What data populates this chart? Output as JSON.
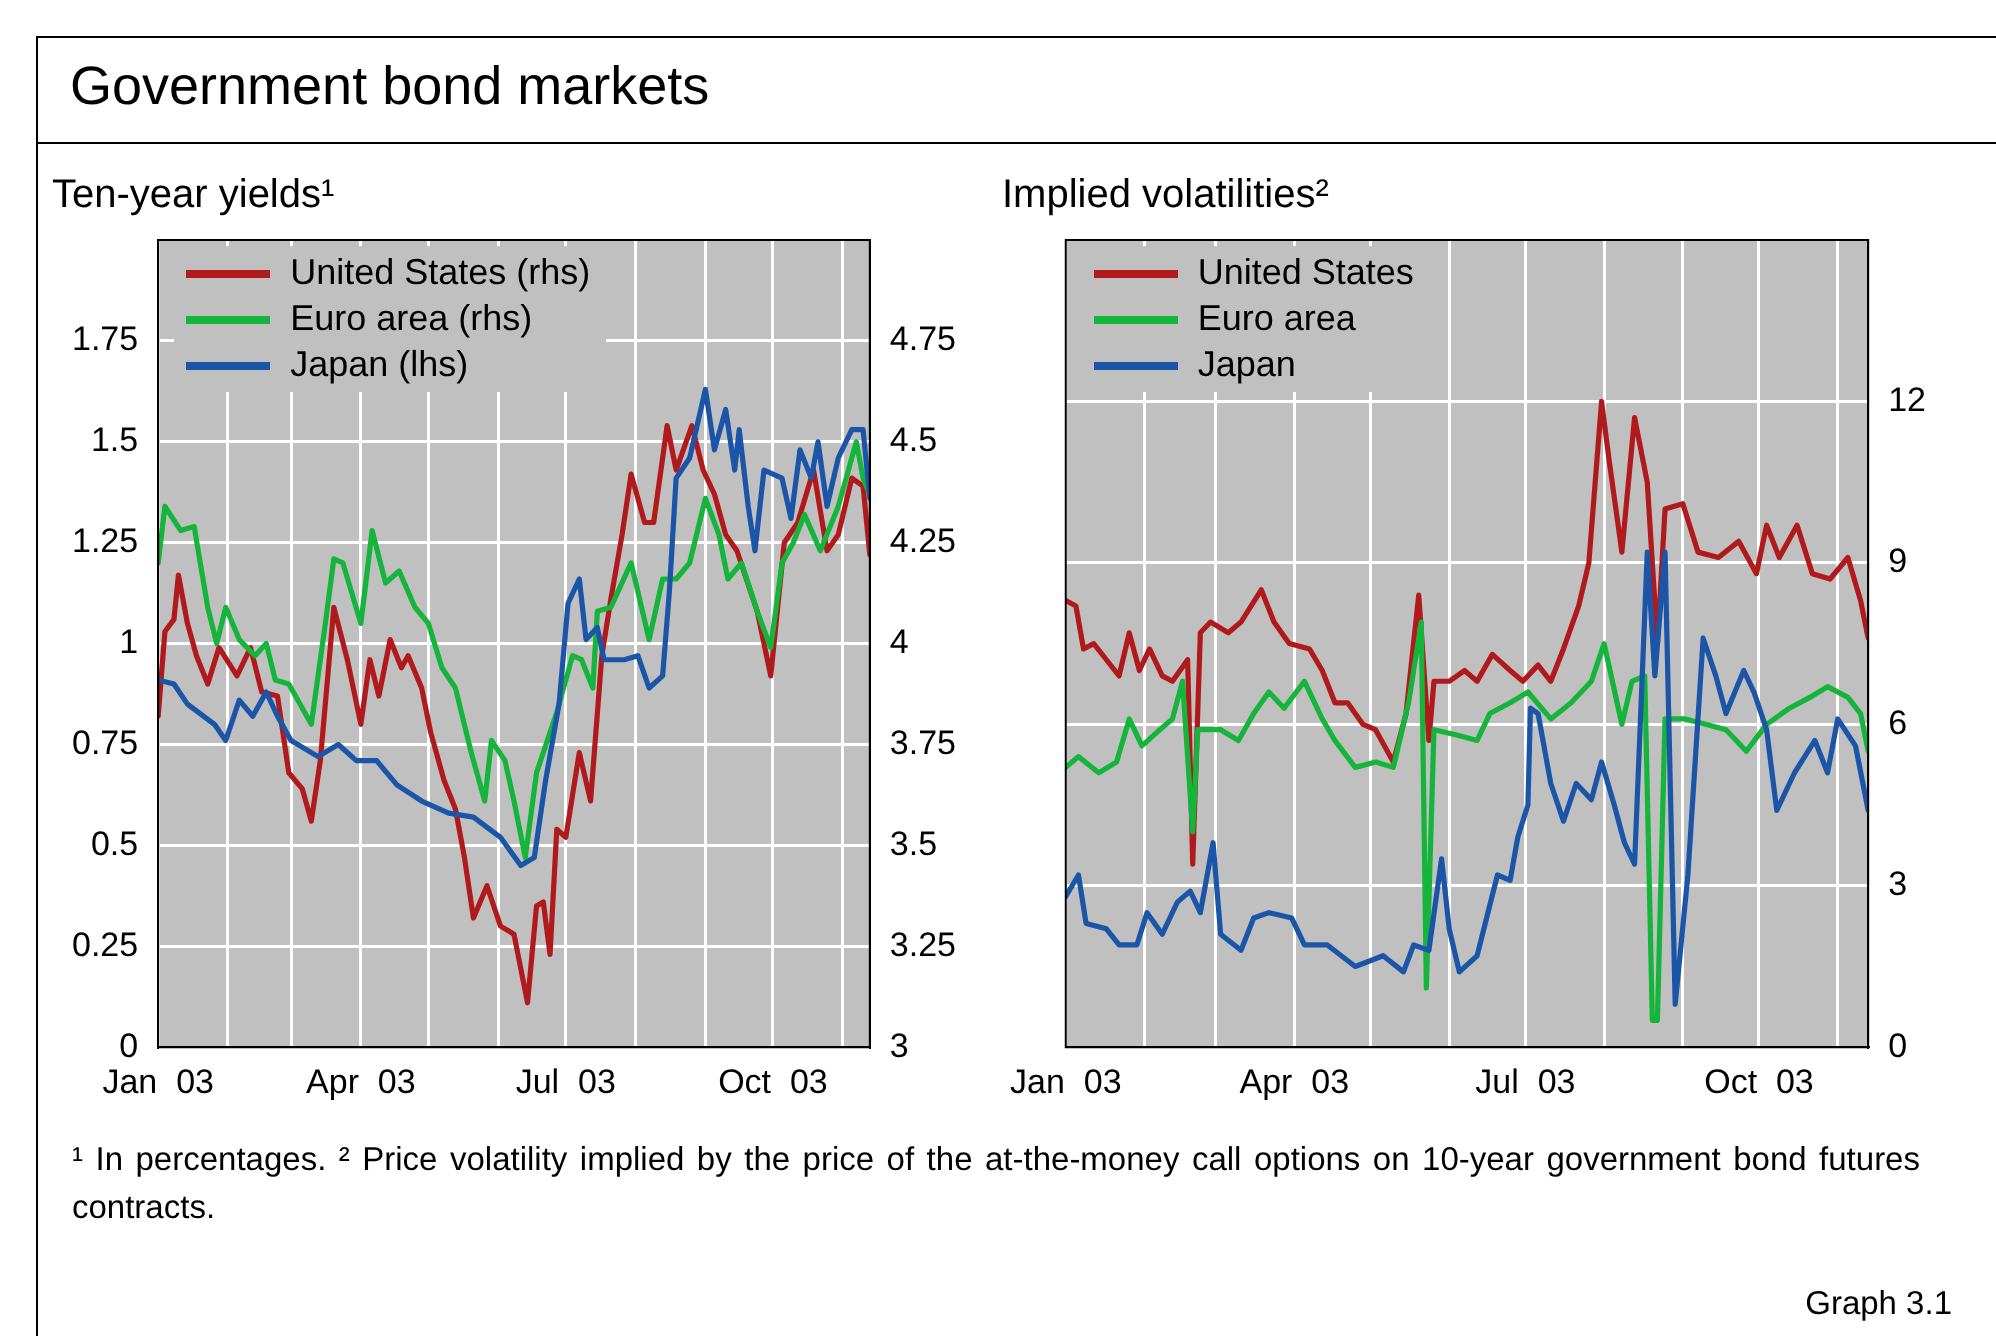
{
  "chart_data": [
    {
      "type": "line",
      "title": "Ten-year yields¹",
      "annotations": [
        "Government bond markets"
      ],
      "xlim": [
        "2003-01-01",
        "2003-11-13"
      ],
      "xticks": [
        {
          "value": "2003-01-01",
          "label": "Jan  03"
        },
        {
          "value": "2003-02-01",
          "label": null
        },
        {
          "value": "2003-03-01",
          "label": null
        },
        {
          "value": "2003-04-01",
          "label": "Apr  03"
        },
        {
          "value": "2003-05-01",
          "label": null
        },
        {
          "value": "2003-06-01",
          "label": null
        },
        {
          "value": "2003-07-01",
          "label": "Jul  03"
        },
        {
          "value": "2003-08-01",
          "label": null
        },
        {
          "value": "2003-09-01",
          "label": null
        },
        {
          "value": "2003-10-01",
          "label": "Oct  03"
        },
        {
          "value": "2003-11-01",
          "label": null
        }
      ],
      "ylim": [
        0,
        2
      ],
      "yticks": [
        0,
        0.25,
        0.5,
        0.75,
        1,
        1.25,
        1.5,
        1.75
      ],
      "y2lim": [
        3,
        5
      ],
      "y2ticks": [
        3,
        3.25,
        3.5,
        3.75,
        4,
        4.25,
        4.5,
        4.75
      ],
      "grid": true,
      "legend": "top left",
      "series": [
        {
          "name": "United States (rhs)",
          "color": "#b11a1c",
          "axis": "y2",
          "x": [
            "2003-01-01",
            "2003-01-04",
            "2003-01-08",
            "2003-01-10",
            "2003-01-14",
            "2003-01-18",
            "2003-01-23",
            "2003-01-28",
            "2003-02-05",
            "2003-02-11",
            "2003-02-16",
            "2003-02-23",
            "2003-02-28",
            "2003-03-06",
            "2003-03-10",
            "2003-03-14",
            "2003-03-20",
            "2003-03-26",
            "2003-04-01",
            "2003-04-05",
            "2003-04-09",
            "2003-04-14",
            "2003-04-19",
            "2003-04-22",
            "2003-04-28",
            "2003-05-02",
            "2003-05-08",
            "2003-05-13",
            "2003-05-17",
            "2003-05-21",
            "2003-05-27",
            "2003-06-02",
            "2003-06-08",
            "2003-06-14",
            "2003-06-18",
            "2003-06-21",
            "2003-06-24",
            "2003-06-27",
            "2003-07-01",
            "2003-07-07",
            "2003-07-12",
            "2003-07-17",
            "2003-07-21",
            "2003-07-26",
            "2003-07-30",
            "2003-08-05",
            "2003-08-09",
            "2003-08-15",
            "2003-08-19",
            "2003-08-26",
            "2003-08-31",
            "2003-09-05",
            "2003-09-10",
            "2003-09-15",
            "2003-09-24",
            "2003-09-30",
            "2003-10-06",
            "2003-10-12",
            "2003-10-19",
            "2003-10-25",
            "2003-10-30",
            "2003-11-05",
            "2003-11-10",
            "2003-11-13"
          ],
          "values": [
            3.82,
            4.03,
            4.06,
            4.17,
            4.05,
            3.97,
            3.9,
            3.99,
            3.92,
            3.99,
            3.88,
            3.87,
            3.68,
            3.64,
            3.56,
            3.71,
            4.09,
            3.96,
            3.8,
            3.96,
            3.87,
            4.01,
            3.94,
            3.97,
            3.89,
            3.78,
            3.66,
            3.59,
            3.47,
            3.32,
            3.4,
            3.3,
            3.28,
            3.11,
            3.35,
            3.36,
            3.23,
            3.54,
            3.52,
            3.73,
            3.61,
            3.97,
            4.11,
            4.27,
            4.42,
            4.3,
            4.3,
            4.54,
            4.43,
            4.54,
            4.43,
            4.37,
            4.27,
            4.23,
            4.08,
            3.92,
            4.25,
            4.3,
            4.43,
            4.23,
            4.27,
            4.41,
            4.39,
            4.22
          ]
        },
        {
          "name": "Euro area (rhs)",
          "color": "#14b53a",
          "axis": "y2",
          "x": [
            "2003-01-01",
            "2003-01-04",
            "2003-01-11",
            "2003-01-17",
            "2003-01-23",
            "2003-01-27",
            "2003-01-31",
            "2003-02-06",
            "2003-02-13",
            "2003-02-18",
            "2003-02-22",
            "2003-02-28",
            "2003-03-10",
            "2003-03-16",
            "2003-03-20",
            "2003-03-24",
            "2003-04-01",
            "2003-04-06",
            "2003-04-12",
            "2003-04-18",
            "2003-04-25",
            "2003-05-01",
            "2003-05-07",
            "2003-05-13",
            "2003-05-20",
            "2003-05-26",
            "2003-05-29",
            "2003-06-04",
            "2003-06-08",
            "2003-06-13",
            "2003-06-18",
            "2003-06-27",
            "2003-07-04",
            "2003-07-08",
            "2003-07-13",
            "2003-07-15",
            "2003-07-21",
            "2003-07-30",
            "2003-08-07",
            "2003-08-13",
            "2003-08-19",
            "2003-08-25",
            "2003-09-01",
            "2003-09-07",
            "2003-09-11",
            "2003-09-17",
            "2003-09-24",
            "2003-09-30",
            "2003-10-05",
            "2003-10-10",
            "2003-10-15",
            "2003-10-22",
            "2003-10-30",
            "2003-11-07",
            "2003-11-10",
            "2003-11-13"
          ],
          "values": [
            4.2,
            4.34,
            4.28,
            4.29,
            4.09,
            4.0,
            4.09,
            4.01,
            3.97,
            4.0,
            3.91,
            3.9,
            3.8,
            4.04,
            4.21,
            4.2,
            4.05,
            4.28,
            4.15,
            4.18,
            4.09,
            4.05,
            3.94,
            3.89,
            3.73,
            3.61,
            3.76,
            3.71,
            3.61,
            3.47,
            3.68,
            3.83,
            3.97,
            3.96,
            3.89,
            4.08,
            4.09,
            4.2,
            4.01,
            4.16,
            4.16,
            4.2,
            4.36,
            4.27,
            4.16,
            4.2,
            4.08,
            3.99,
            4.2,
            4.25,
            4.32,
            4.23,
            4.34,
            4.5,
            4.41,
            4.37
          ]
        },
        {
          "name": "Japan (lhs)",
          "color": "#1a55a8",
          "x": [
            "2003-01-01",
            "2003-01-08",
            "2003-01-14",
            "2003-01-26",
            "2003-01-31",
            "2003-02-06",
            "2003-02-12",
            "2003-02-18",
            "2003-02-23",
            "2003-03-01",
            "2003-03-13",
            "2003-03-22",
            "2003-03-30",
            "2003-04-08",
            "2003-04-17",
            "2003-04-28",
            "2003-05-10",
            "2003-05-21",
            "2003-06-02",
            "2003-06-11",
            "2003-06-17",
            "2003-06-22",
            "2003-06-28",
            "2003-07-02",
            "2003-07-07",
            "2003-07-10",
            "2003-07-15",
            "2003-07-18",
            "2003-07-27",
            "2003-08-02",
            "2003-08-07",
            "2003-08-13",
            "2003-08-16",
            "2003-08-19",
            "2003-08-25",
            "2003-09-01",
            "2003-09-05",
            "2003-09-10",
            "2003-09-14",
            "2003-09-16",
            "2003-09-20",
            "2003-09-23",
            "2003-09-27",
            "2003-10-05",
            "2003-10-09",
            "2003-10-13",
            "2003-10-18",
            "2003-10-21",
            "2003-10-25",
            "2003-10-30",
            "2003-11-05",
            "2003-11-10",
            "2003-11-13"
          ],
          "values": [
            0.91,
            0.9,
            0.85,
            0.8,
            0.76,
            0.86,
            0.82,
            0.88,
            0.82,
            0.76,
            0.72,
            0.75,
            0.71,
            0.71,
            0.65,
            0.61,
            0.58,
            0.57,
            0.52,
            0.45,
            0.47,
            0.66,
            0.85,
            1.1,
            1.16,
            1.01,
            1.04,
            0.96,
            0.96,
            0.97,
            0.89,
            0.92,
            1.13,
            1.41,
            1.46,
            1.63,
            1.48,
            1.58,
            1.43,
            1.53,
            1.34,
            1.23,
            1.43,
            1.41,
            1.31,
            1.48,
            1.41,
            1.5,
            1.34,
            1.46,
            1.53,
            1.53,
            1.36
          ]
        }
      ]
    },
    {
      "type": "line",
      "title": "Implied volatilities²",
      "annotations": [
        "¹ In percentages.   ² Price volatility implied by the price of the at-the-money call options on 10-year government bond futures contracts.",
        "Graph 3.1"
      ],
      "xlim": [
        "2003-01-01",
        "2003-11-13"
      ],
      "xticks": [
        {
          "value": "2003-01-01",
          "label": "Jan  03"
        },
        {
          "value": "2003-02-01",
          "label": null
        },
        {
          "value": "2003-03-01",
          "label": null
        },
        {
          "value": "2003-04-01",
          "label": "Apr  03"
        },
        {
          "value": "2003-05-01",
          "label": null
        },
        {
          "value": "2003-06-01",
          "label": null
        },
        {
          "value": "2003-07-01",
          "label": "Jul  03"
        },
        {
          "value": "2003-08-01",
          "label": null
        },
        {
          "value": "2003-09-01",
          "label": null
        },
        {
          "value": "2003-10-01",
          "label": "Oct  03"
        },
        {
          "value": "2003-11-01",
          "label": null
        }
      ],
      "y2lim": [
        0,
        15
      ],
      "y2ticks": [
        0,
        3,
        6,
        9,
        12
      ],
      "grid": true,
      "legend": "top left",
      "series": [
        {
          "name": "United States",
          "color": "#b11a1c",
          "axis": "y2",
          "x": [
            "2003-01-01",
            "2003-01-05",
            "2003-01-08",
            "2003-01-12",
            "2003-01-17",
            "2003-01-22",
            "2003-01-26",
            "2003-01-30",
            "2003-02-03",
            "2003-02-08",
            "2003-02-12",
            "2003-02-18",
            "2003-02-20",
            "2003-02-23",
            "2003-02-27",
            "2003-03-06",
            "2003-03-11",
            "2003-03-15",
            "2003-03-19",
            "2003-03-24",
            "2003-03-30",
            "2003-04-07",
            "2003-04-12",
            "2003-04-17",
            "2003-04-22",
            "2003-04-28",
            "2003-05-03",
            "2003-05-10",
            "2003-05-15",
            "2003-05-20",
            "2003-05-24",
            "2003-05-26",
            "2003-06-01",
            "2003-06-07",
            "2003-06-12",
            "2003-06-18",
            "2003-06-25",
            "2003-06-30",
            "2003-07-06",
            "2003-07-11",
            "2003-07-16",
            "2003-07-22",
            "2003-07-26",
            "2003-07-31",
            "2003-08-03",
            "2003-08-08",
            "2003-08-13",
            "2003-08-18",
            "2003-08-22",
            "2003-08-25",
            "2003-09-01",
            "2003-09-07",
            "2003-09-15",
            "2003-09-23",
            "2003-09-30",
            "2003-10-04",
            "2003-10-09",
            "2003-10-16",
            "2003-10-22",
            "2003-10-29",
            "2003-11-05",
            "2003-11-10",
            "2003-11-13"
          ],
          "values": [
            8.3,
            8.2,
            7.4,
            7.5,
            7.2,
            6.9,
            7.7,
            7.0,
            7.4,
            6.9,
            6.8,
            7.2,
            3.4,
            7.7,
            7.9,
            7.7,
            7.9,
            8.2,
            8.5,
            7.9,
            7.5,
            7.4,
            7.0,
            6.4,
            6.4,
            6.0,
            5.9,
            5.3,
            6.2,
            8.4,
            5.7,
            6.8,
            6.8,
            7.0,
            6.8,
            7.3,
            7.0,
            6.8,
            7.1,
            6.8,
            7.4,
            8.2,
            9.0,
            12.0,
            10.9,
            9.2,
            11.7,
            10.5,
            7.5,
            10.0,
            10.1,
            9.2,
            9.1,
            9.4,
            8.8,
            9.7,
            9.1,
            9.7,
            8.8,
            8.7,
            9.1,
            8.3,
            7.6
          ]
        },
        {
          "name": "Euro area",
          "color": "#14b53a",
          "axis": "y2",
          "x": [
            "2003-01-01",
            "2003-01-06",
            "2003-01-14",
            "2003-01-21",
            "2003-01-26",
            "2003-01-31",
            "2003-02-07",
            "2003-02-12",
            "2003-02-16",
            "2003-02-20",
            "2003-02-22",
            "2003-03-03",
            "2003-03-10",
            "2003-03-16",
            "2003-03-22",
            "2003-03-28",
            "2003-04-05",
            "2003-04-12",
            "2003-04-17",
            "2003-04-25",
            "2003-05-03",
            "2003-05-10",
            "2003-05-16",
            "2003-05-21",
            "2003-05-23",
            "2003-05-26",
            "2003-06-04",
            "2003-06-12",
            "2003-06-17",
            "2003-06-25",
            "2003-07-02",
            "2003-07-11",
            "2003-07-19",
            "2003-07-27",
            "2003-08-01",
            "2003-08-08",
            "2003-08-12",
            "2003-08-17",
            "2003-08-20",
            "2003-08-22",
            "2003-08-25",
            "2003-09-02",
            "2003-09-10",
            "2003-09-18",
            "2003-09-26",
            "2003-10-04",
            "2003-10-13",
            "2003-10-21",
            "2003-10-28",
            "2003-11-05",
            "2003-11-10",
            "2003-11-13"
          ],
          "values": [
            5.2,
            5.4,
            5.1,
            5.3,
            6.1,
            5.6,
            5.9,
            6.1,
            6.8,
            4.0,
            5.9,
            5.9,
            5.7,
            6.2,
            6.6,
            6.3,
            6.8,
            6.1,
            5.7,
            5.2,
            5.3,
            5.2,
            6.4,
            7.9,
            1.1,
            5.9,
            5.8,
            5.7,
            6.2,
            6.4,
            6.6,
            6.1,
            6.4,
            6.8,
            7.5,
            6.0,
            6.8,
            6.9,
            0.5,
            0.5,
            6.1,
            6.1,
            6.0,
            5.9,
            5.5,
            6.0,
            6.3,
            6.5,
            6.7,
            6.5,
            6.2,
            5.5
          ]
        },
        {
          "name": "Japan",
          "color": "#1a55a8",
          "axis": "y2",
          "x": [
            "2003-01-01",
            "2003-01-06",
            "2003-01-09",
            "2003-01-17",
            "2003-01-22",
            "2003-01-29",
            "2003-02-02",
            "2003-02-08",
            "2003-02-14",
            "2003-02-19",
            "2003-02-23",
            "2003-02-28",
            "2003-03-03",
            "2003-03-11",
            "2003-03-16",
            "2003-03-22",
            "2003-03-31",
            "2003-04-05",
            "2003-04-14",
            "2003-04-25",
            "2003-05-06",
            "2003-05-14",
            "2003-05-18",
            "2003-05-24",
            "2003-05-29",
            "2003-06-01",
            "2003-06-05",
            "2003-06-12",
            "2003-06-20",
            "2003-06-25",
            "2003-06-28",
            "2003-07-02",
            "2003-07-03",
            "2003-07-06",
            "2003-07-11",
            "2003-07-16",
            "2003-07-21",
            "2003-07-27",
            "2003-07-31",
            "2003-08-05",
            "2003-08-09",
            "2003-08-13",
            "2003-08-18",
            "2003-08-21",
            "2003-08-25",
            "2003-08-29",
            "2003-09-03",
            "2003-09-09",
            "2003-09-14",
            "2003-09-18",
            "2003-09-25",
            "2003-09-29",
            "2003-10-04",
            "2003-10-08",
            "2003-10-15",
            "2003-10-23",
            "2003-10-28",
            "2003-11-01",
            "2003-11-08",
            "2003-11-13"
          ],
          "values": [
            2.8,
            3.2,
            2.3,
            2.2,
            1.9,
            1.9,
            2.5,
            2.1,
            2.7,
            2.9,
            2.5,
            3.8,
            2.1,
            1.8,
            2.4,
            2.5,
            2.4,
            1.9,
            1.9,
            1.5,
            1.7,
            1.4,
            1.9,
            1.8,
            3.5,
            2.2,
            1.4,
            1.7,
            3.2,
            3.1,
            3.9,
            4.5,
            6.3,
            6.2,
            4.9,
            4.2,
            4.9,
            4.6,
            5.3,
            4.5,
            3.8,
            3.4,
            9.2,
            6.9,
            9.2,
            0.8,
            3.2,
            7.6,
            6.9,
            6.2,
            7.0,
            6.6,
            5.9,
            4.4,
            5.1,
            5.7,
            5.1,
            6.1,
            5.6,
            4.4
          ]
        }
      ]
    }
  ]
}
